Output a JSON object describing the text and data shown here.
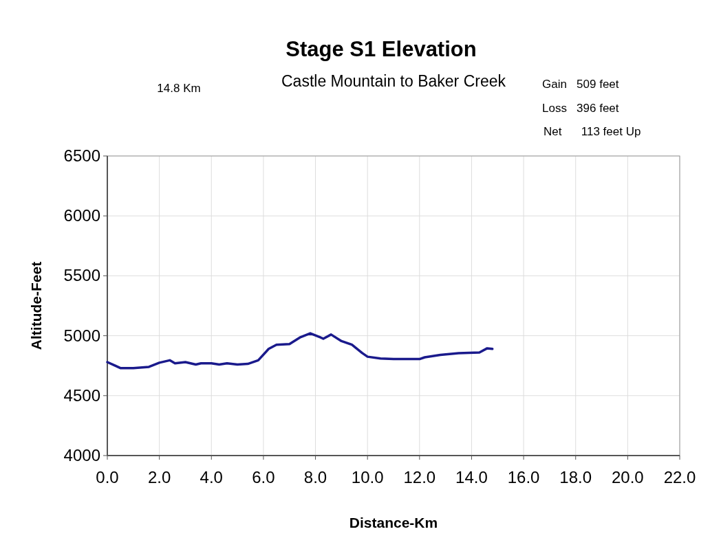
{
  "chart_data": {
    "type": "line",
    "title": "Stage S1 Elevation",
    "subtitle": "Castle Mountain to Baker Creek",
    "annotations": [
      "14.8 Km",
      "Gain   509 feet",
      "Loss   396 feet",
      "Net      113 feet Up"
    ],
    "xlabel": "Distance-Km",
    "ylabel": "Altitude-Feet",
    "series": [
      {
        "color": "#1a1a8c",
        "x": [
          0,
          0.3,
          0.5,
          1.0,
          1.6,
          2.0,
          2.4,
          2.6,
          3.0,
          3.4,
          3.6,
          4.0,
          4.3,
          4.6,
          5.0,
          5.4,
          5.8,
          6.2,
          6.5,
          7.0,
          7.4,
          7.8,
          8.2,
          8.3,
          8.6,
          9.0,
          9.4,
          9.8,
          10.0,
          10.5,
          11.0,
          12.0,
          12.2,
          12.8,
          13.5,
          14.3,
          14.6,
          14.8
        ],
        "values": [
          4780,
          4750,
          4730,
          4730,
          4740,
          4775,
          4795,
          4770,
          4780,
          4760,
          4770,
          4770,
          4760,
          4770,
          4760,
          4765,
          4795,
          4890,
          4925,
          4930,
          4985,
          5020,
          4985,
          4975,
          5010,
          4955,
          4925,
          4855,
          4825,
          4810,
          4805,
          4805,
          4820,
          4840,
          4855,
          4860,
          4895,
          4890
        ]
      }
    ],
    "xlim": [
      0,
      22
    ],
    "xticks": [
      {
        "value": 0,
        "label": "0.0"
      },
      {
        "value": 2,
        "label": "2.0"
      },
      {
        "value": 4,
        "label": "4.0"
      },
      {
        "value": 6,
        "label": "6.0"
      },
      {
        "value": 8,
        "label": "8.0"
      },
      {
        "value": 10,
        "label": "10.0"
      },
      {
        "value": 12,
        "label": "12.0"
      },
      {
        "value": 14,
        "label": "14.0"
      },
      {
        "value": 16,
        "label": "16.0"
      },
      {
        "value": 18,
        "label": "18.0"
      },
      {
        "value": 20,
        "label": "20.0"
      },
      {
        "value": 22,
        "label": "22.0"
      }
    ],
    "ylim": [
      4000,
      6500
    ],
    "yticks": [
      4000,
      4500,
      5000,
      5500,
      6000,
      6500
    ],
    "grid": true,
    "line_style": "solid",
    "marker": "none"
  }
}
